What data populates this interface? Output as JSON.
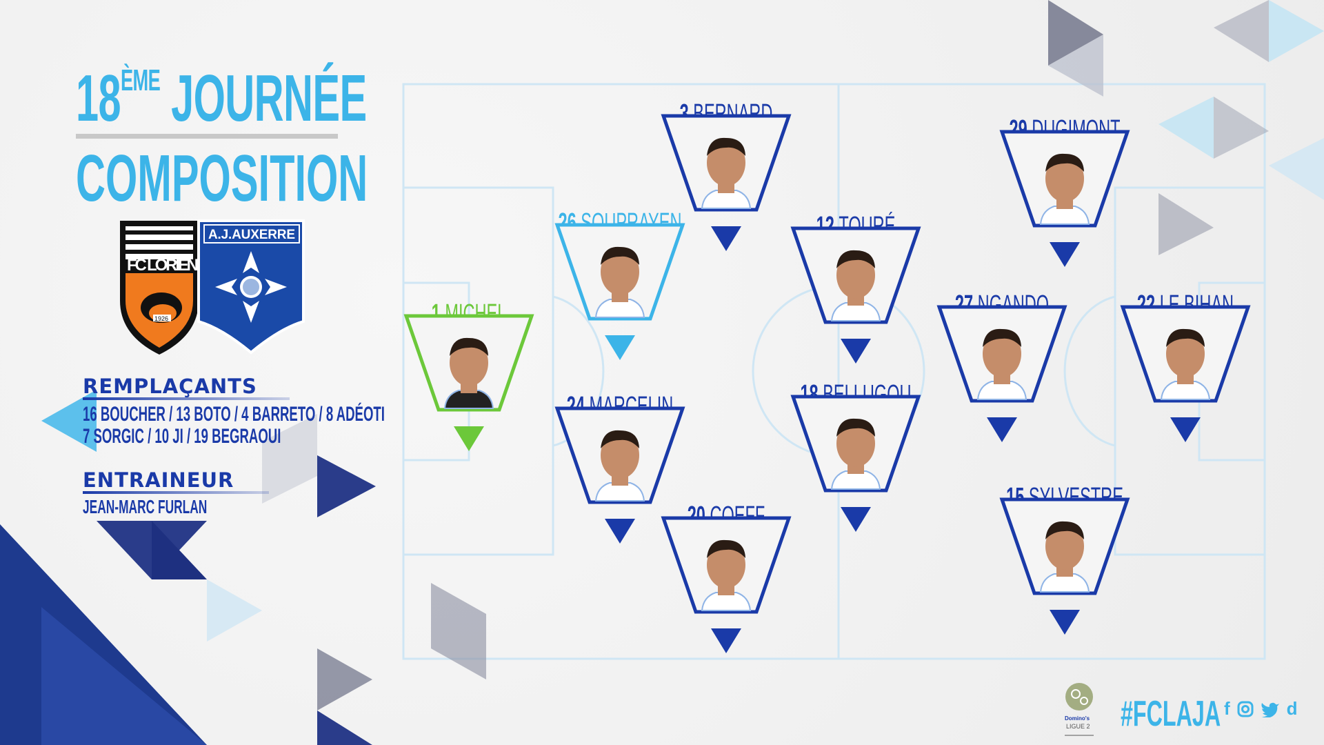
{
  "header": {
    "round_number": "18",
    "round_suffix": "ÈME",
    "round_word": "JOURNÉE",
    "title": "COMPOSITION"
  },
  "clubs": {
    "home": {
      "name": "FC LORIENT",
      "display": "FC LORIEN",
      "year": "1926",
      "color": "#f07a1e"
    },
    "away": {
      "name": "A.J.AUXERRE",
      "color": "#1a4aa8"
    }
  },
  "substitutes": {
    "heading": "REMPLAÇANTS",
    "line1": [
      {
        "num": "16",
        "name": "BOUCHER"
      },
      {
        "num": "13",
        "name": "BOTO"
      },
      {
        "num": "4",
        "name": "BARRETO"
      },
      {
        "num": "8",
        "name": "ADÉOTI"
      }
    ],
    "line2": [
      {
        "num": "7",
        "name": "SORGIC"
      },
      {
        "num": "10",
        "name": "JI"
      },
      {
        "num": "19",
        "name": "BEGRAOUI"
      }
    ]
  },
  "coach": {
    "heading": "ENTRAINEUR",
    "name": "JEAN-MARC FURLAN"
  },
  "players": [
    {
      "num": "1",
      "name": "MICHEL",
      "role": "goalkeeper",
      "color": "#6cc83a"
    },
    {
      "num": "3",
      "name": "BERNARD",
      "role": "player",
      "color": "#1a3aa8"
    },
    {
      "num": "26",
      "name": "SOUPRAYEN",
      "role": "player",
      "color": "#3cb4e8"
    },
    {
      "num": "24",
      "name": "MARCELIN",
      "role": "player",
      "color": "#1a3aa8"
    },
    {
      "num": "20",
      "name": "COEFF",
      "role": "player",
      "color": "#1a3aa8"
    },
    {
      "num": "12",
      "name": "TOURÉ",
      "role": "player",
      "color": "#1a3aa8"
    },
    {
      "num": "18",
      "name": "BELLUGOU",
      "role": "player",
      "color": "#1a3aa8"
    },
    {
      "num": "29",
      "name": "DUGIMONT",
      "role": "player",
      "color": "#1a3aa8"
    },
    {
      "num": "27",
      "name": "NGANDO",
      "role": "player",
      "color": "#1a3aa8"
    },
    {
      "num": "22",
      "name": "LE BIHAN",
      "role": "player",
      "color": "#1a3aa8"
    },
    {
      "num": "15",
      "name": "SYLVESTRE",
      "role": "player",
      "color": "#1a3aa8"
    }
  ],
  "footer": {
    "league_sponsor": "Domino's",
    "league": "LIGUE 2",
    "hashtag": "#FCLAJA",
    "social_icons": [
      "facebook-icon",
      "instagram-icon",
      "twitter-icon",
      "dailymotion-icon"
    ],
    "social_glyphs": {
      "facebook": "f",
      "dailymotion": "d"
    }
  },
  "colors": {
    "primary": "#1a3aa8",
    "accent": "#3cb4e8",
    "goalkeeper": "#6cc83a"
  }
}
